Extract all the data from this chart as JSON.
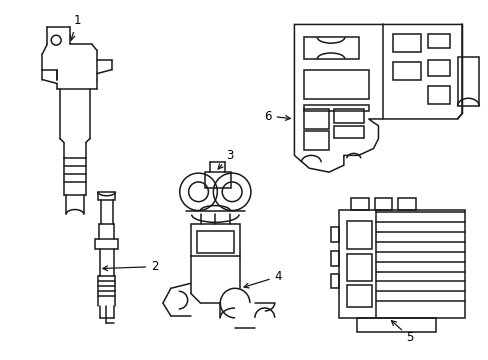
{
  "background_color": "#ffffff",
  "line_color": "#1a1a1a",
  "line_width": 1.1,
  "label_fontsize": 8.5
}
